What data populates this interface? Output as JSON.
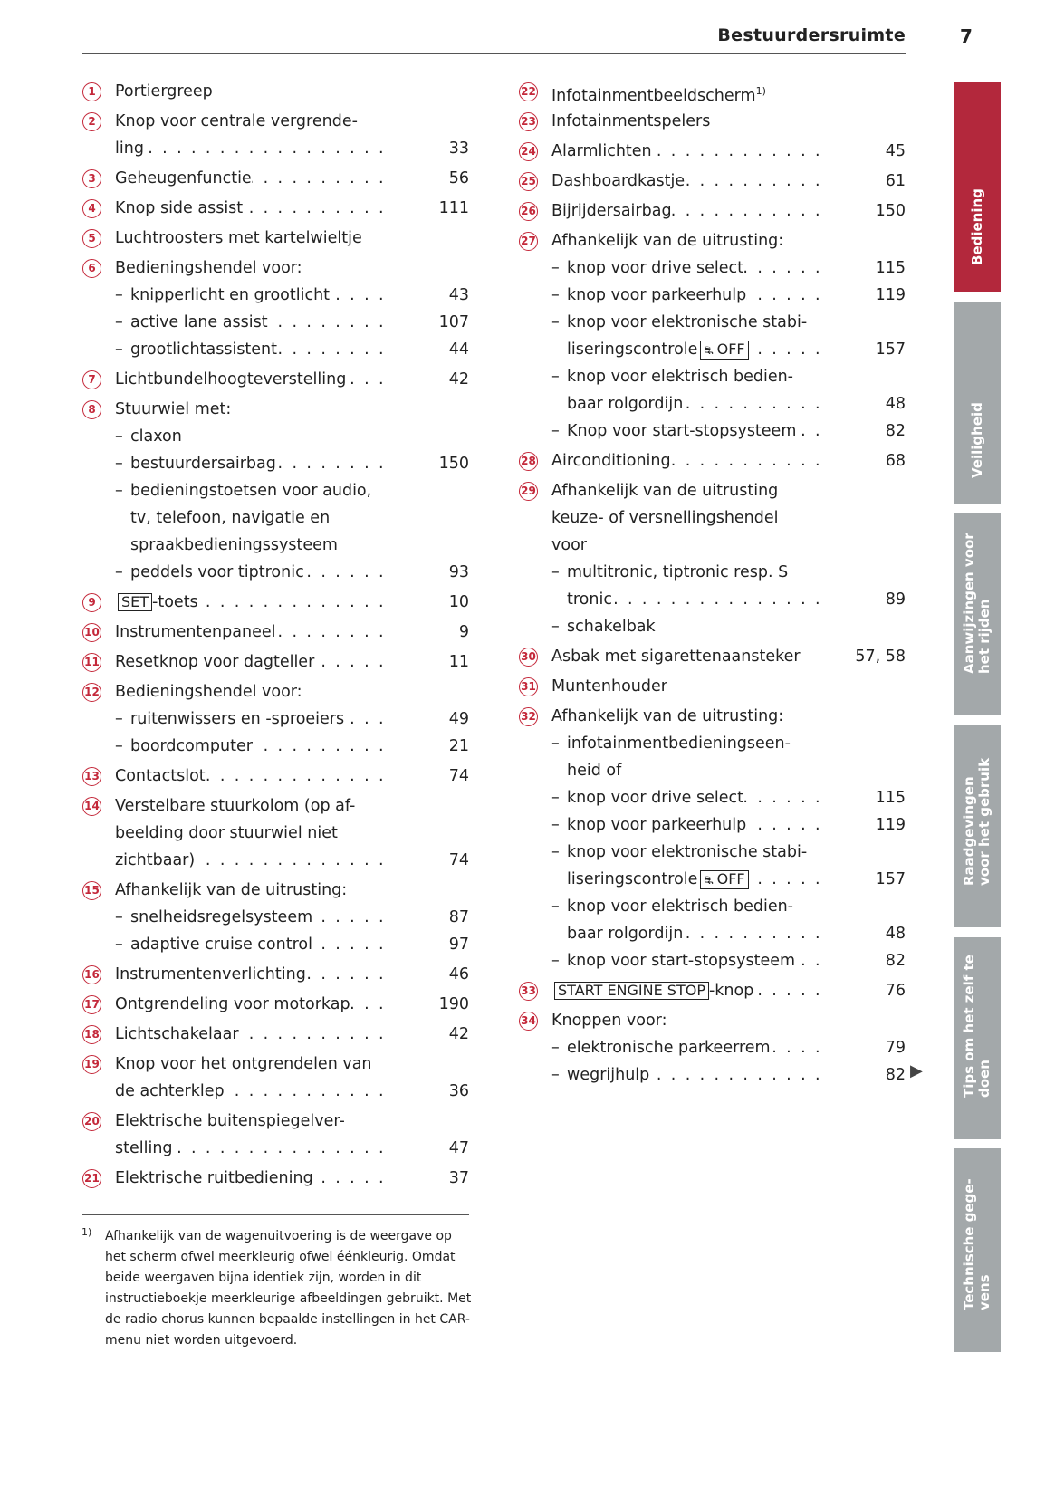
{
  "header": {
    "title": "Bestuurdersruimte",
    "page": "7"
  },
  "accent_color": "#b3283c",
  "tabs": [
    {
      "label": "Bediening",
      "active": true
    },
    {
      "label": "Veiligheid"
    },
    {
      "label": "Aanwijzingen voor\nhet rijden"
    },
    {
      "label": "Raadgevingen\nvoor het gebruik"
    },
    {
      "label": "Tips om het zelf te\ndoen"
    },
    {
      "label": "Technische gege-\nvens"
    }
  ],
  "left": [
    {
      "n": "1",
      "lines": [
        "Portiergreep"
      ]
    },
    {
      "n": "2",
      "lines": [
        "Knop voor centrale vergrende-",
        "ling"
      ],
      "page": "33"
    },
    {
      "n": "3",
      "lines": [
        "Geheugenfunctie"
      ],
      "page": "56"
    },
    {
      "n": "4",
      "lines": [
        "Knop side assist"
      ],
      "page": "111"
    },
    {
      "n": "5",
      "lines": [
        "Luchtroosters met kartelwieltje"
      ]
    },
    {
      "n": "6",
      "lines": [
        "Bedieningshendel voor:"
      ]
    },
    {
      "lines": [
        "knipperlicht en grootlicht"
      ],
      "page": "43"
    },
    {
      "lines": [
        "active lane assist"
      ],
      "page": "107"
    },
    {
      "lines": [
        "grootlichtassistent"
      ],
      "page": "44"
    },
    {
      "n": "7",
      "lines": [
        "Lichtbundelhoogteverstelling"
      ],
      "page": "42"
    },
    {
      "n": "8",
      "lines": [
        "Stuurwiel met:"
      ]
    },
    {
      "lines": [
        "claxon"
      ]
    },
    {
      "lines": [
        "bestuurdersairbag"
      ],
      "page": "150"
    },
    {
      "lines": [
        "bedieningstoetsen voor audio,",
        "tv, telefoon, navigatie en",
        "spraakbedieningssysteem"
      ]
    },
    {
      "lines": [
        "peddels voor tiptronic"
      ],
      "page": "93"
    },
    {
      "n": "9",
      "lines": [
        ""
      ],
      "box": "SET",
      "after": "-toets",
      "page": "10"
    },
    {
      "n": "10",
      "lines": [
        "Instrumentenpaneel"
      ],
      "page": "9"
    },
    {
      "n": "11",
      "lines": [
        "Resetknop voor dagteller"
      ],
      "page": "11"
    },
    {
      "n": "12",
      "lines": [
        "Bedieningshendel voor:"
      ]
    },
    {
      "lines": [
        "ruitenwissers en -sproeiers"
      ],
      "page": "49"
    },
    {
      "lines": [
        "boordcomputer"
      ],
      "page": "21"
    },
    {
      "n": "13",
      "lines": [
        "Contactslot"
      ],
      "page": "74"
    },
    {
      "n": "14",
      "lines": [
        "Verstelbare stuurkolom (op af-",
        "beelding door stuurwiel niet",
        "zichtbaar)"
      ],
      "page": "74"
    },
    {
      "n": "15",
      "lines": [
        "Afhankelijk van de uitrusting:"
      ]
    },
    {
      "lines": [
        "snelheidsregelsysteem"
      ],
      "page": "87"
    },
    {
      "lines": [
        "adaptive cruise control"
      ],
      "page": "97"
    },
    {
      "n": "16",
      "lines": [
        "Instrumentenverlichting"
      ],
      "page": "46"
    },
    {
      "n": "17",
      "lines": [
        "Ontgrendeling voor motorkap"
      ],
      "page": "190"
    },
    {
      "n": "18",
      "lines": [
        "Lichtschakelaar"
      ],
      "page": "42"
    },
    {
      "n": "19",
      "lines": [
        "Knop voor het ontgrendelen van",
        "de achterklep"
      ],
      "page": "36"
    },
    {
      "n": "20",
      "lines": [
        "Elektrische buitenspiegelver-",
        "stelling"
      ],
      "page": "47"
    },
    {
      "n": "21",
      "lines": [
        "Elektrische ruitbediening"
      ],
      "page": "37"
    }
  ],
  "right": [
    {
      "n": "22",
      "lines": [
        "Infotainmentbeeldscherm"
      ],
      "sup": "1)"
    },
    {
      "n": "23",
      "lines": [
        "Infotainmentspelers"
      ]
    },
    {
      "n": "24",
      "lines": [
        "Alarmlichten"
      ],
      "page": "45"
    },
    {
      "n": "25",
      "lines": [
        "Dashboardkastje"
      ],
      "page": "61"
    },
    {
      "n": "26",
      "lines": [
        "Bijrijdersairbag"
      ],
      "page": "150"
    },
    {
      "n": "27",
      "lines": [
        "Afhankelijk van de uitrusting:"
      ]
    },
    {
      "lines": [
        "knop voor drive select"
      ],
      "page": "115"
    },
    {
      "lines": [
        "knop voor parkeerhulp"
      ],
      "page": "119"
    },
    {
      "lines": [
        "knop voor elektronische stabi-",
        "liseringscontrole"
      ],
      "box": "OFF",
      "box_icon": "esc-car-skid-icon",
      "page": "157"
    },
    {
      "lines": [
        "knop voor elektrisch bedien-",
        "baar rolgordijn"
      ],
      "page": "48"
    },
    {
      "lines": [
        "Knop voor start-stopsysteem"
      ],
      "page": "82"
    },
    {
      "n": "28",
      "lines": [
        "Airconditioning"
      ],
      "page": "68"
    },
    {
      "n": "29",
      "lines": [
        "Afhankelijk van de uitrusting",
        "keuze- of versnellingshendel",
        "voor"
      ]
    },
    {
      "lines": [
        "multitronic, tiptronic resp. S",
        "tronic"
      ],
      "page": "89"
    },
    {
      "lines": [
        "schakelbak"
      ]
    },
    {
      "n": "30",
      "lines": [
        "Asbak met sigarettenaansteker"
      ],
      "page": "57, 58",
      "no_leader": true
    },
    {
      "n": "31",
      "lines": [
        "Muntenhouder"
      ]
    },
    {
      "n": "32",
      "lines": [
        "Afhankelijk van de uitrusting:"
      ]
    },
    {
      "lines": [
        "infotainmentbedieningseen-",
        "heid of"
      ]
    },
    {
      "lines": [
        "knop voor drive select"
      ],
      "page": "115"
    },
    {
      "lines": [
        "knop voor parkeerhulp"
      ],
      "page": "119"
    },
    {
      "lines": [
        "knop voor elektronische stabi-",
        "liseringscontrole"
      ],
      "box": "OFF",
      "box_icon": "esc-car-skid-icon",
      "page": "157"
    },
    {
      "lines": [
        "knop voor elektrisch bedien-",
        "baar rolgordijn"
      ],
      "page": "48"
    },
    {
      "lines": [
        "knop voor start-stopsysteem"
      ],
      "page": "82"
    },
    {
      "n": "33",
      "lines": [
        ""
      ],
      "box": "START ENGINE STOP",
      "after": "-knop",
      "page": "76"
    },
    {
      "n": "34",
      "lines": [
        "Knoppen voor:"
      ]
    },
    {
      "lines": [
        "elektronische parkeerrem"
      ],
      "page": "79"
    },
    {
      "lines": [
        "wegrijhulp"
      ],
      "page": "82"
    }
  ],
  "footnote": {
    "mark": "1)",
    "text": "Afhankelijk van de wagenuitvoering is de weergave op het scherm ofwel meerkleurig ofwel éénkleurig. Omdat beide weergaven bijna identiek zijn, worden in dit instructieboekje meerkleurige afbeeldingen gebruikt. Met de radio chorus kunnen bepaalde instellingen in het CAR-menu niet worden uitgevoerd."
  },
  "continue_arrow": "▶"
}
